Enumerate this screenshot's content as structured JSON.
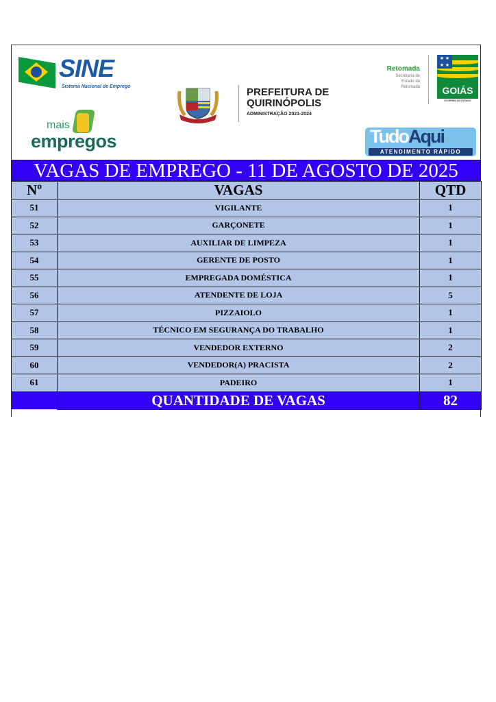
{
  "logos": {
    "sine": {
      "name": "SINE",
      "subtitle": "Sistema Nacional de Emprego"
    },
    "mais_empregos": {
      "line1": "mais",
      "line2": "empregos"
    },
    "prefeitura": {
      "line1": "PREFEITURA DE",
      "line2": "QUIRINÓPOLIS",
      "line3": "ADMINISTRAÇÃO 2021-2024",
      "crest_text": "QUIRINÓPOLIS"
    },
    "retomada": {
      "title": "Retomada",
      "sub1": "Secretaria de",
      "sub2": "Estado da",
      "sub3": "Retomada"
    },
    "goias": {
      "name": "GOIÁS",
      "sub": "GOVERNO DO ESTADO"
    },
    "tudo_aqui": {
      "part1": "Tudo",
      "part2": "Aqui",
      "sub": "ATENDIMENTO RÁPIDO"
    }
  },
  "title": "VAGAS DE EMPREGO - 11 DE AGOSTO DE 2025",
  "colors": {
    "banner": "#3300f5",
    "row": "#b4c6e7"
  },
  "table": {
    "headers": [
      "Nº",
      "VAGAS",
      "QTD"
    ],
    "rows": [
      {
        "n": "51",
        "vaga": "VIGILANTE",
        "qtd": "1"
      },
      {
        "n": "52",
        "vaga": "GARÇONETE",
        "qtd": "1"
      },
      {
        "n": "53",
        "vaga": "AUXILIAR DE LIMPEZA",
        "qtd": "1"
      },
      {
        "n": "54",
        "vaga": "GERENTE DE POSTO",
        "qtd": "1"
      },
      {
        "n": "55",
        "vaga": "EMPREGADA DOMÉSTICA",
        "qtd": "1"
      },
      {
        "n": "56",
        "vaga": "ATENDENTE DE LOJA",
        "qtd": "5"
      },
      {
        "n": "57",
        "vaga": "PIZZAIOLO",
        "qtd": "1"
      },
      {
        "n": "58",
        "vaga": "TÉCNICO EM SEGURANÇA DO TRABALHO",
        "qtd": "1"
      },
      {
        "n": "59",
        "vaga": "VENDEDOR EXTERNO",
        "qtd": "2"
      },
      {
        "n": "60",
        "vaga": "VENDEDOR(A) PRACISTA",
        "qtd": "2"
      },
      {
        "n": "61",
        "vaga": "PADEIRO",
        "qtd": "1"
      }
    ],
    "total_label": "QUANTIDADE DE VAGAS",
    "total_value": "82"
  }
}
